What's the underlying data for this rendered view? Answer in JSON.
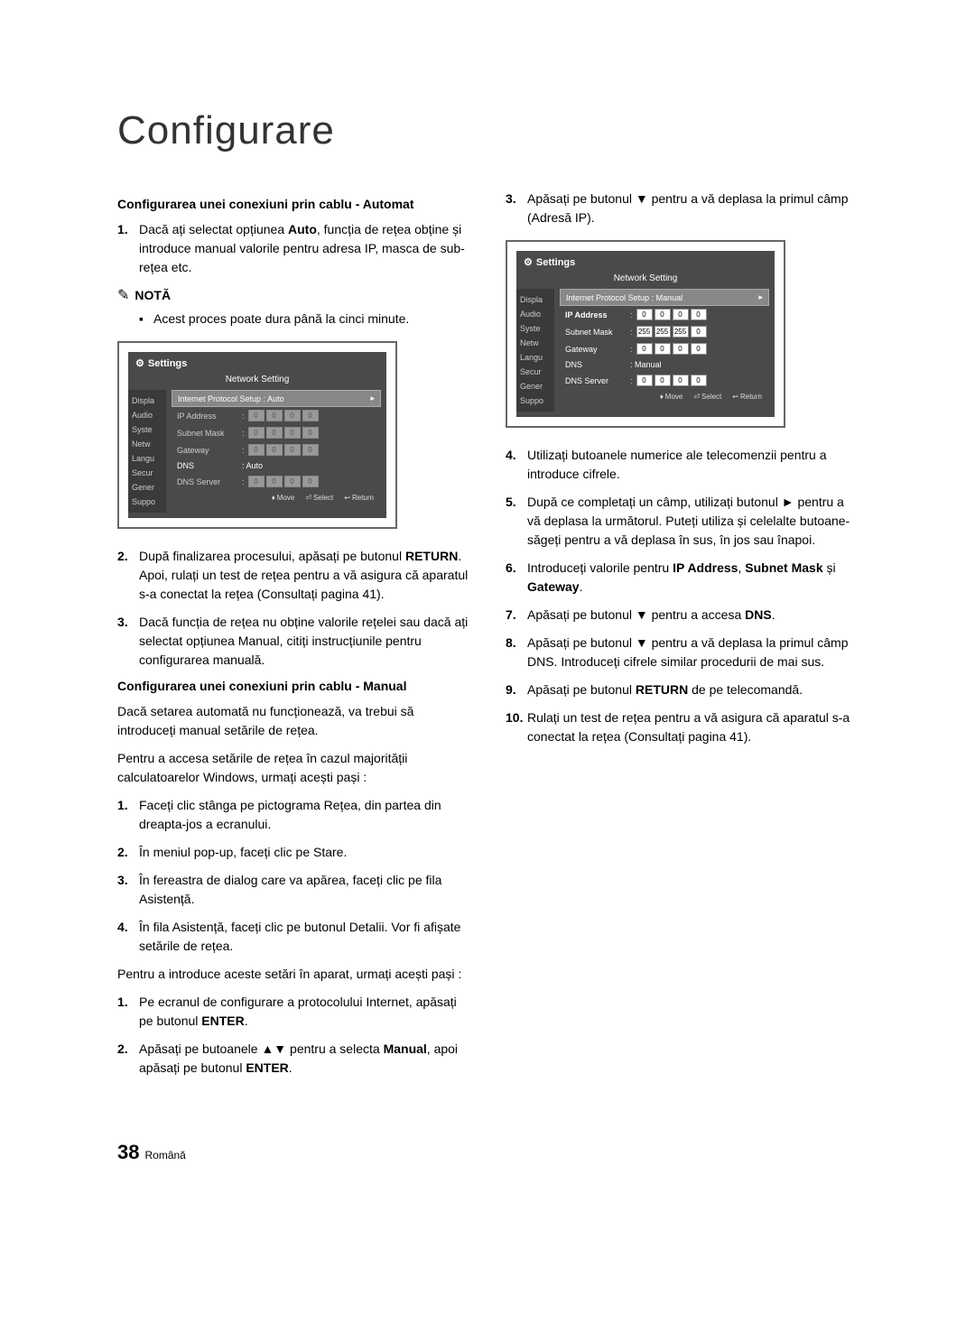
{
  "page_title": "Configurare",
  "left": {
    "h1": "Configurarea unei conexiuni prin cablu - Automat",
    "auto_steps": [
      "Dacă ați selectat opțiunea Auto, funcția de rețea obține și introduce manual valorile pentru adresa IP, masca de sub-rețea etc."
    ],
    "note_label": "NOTĂ",
    "note_bullet": "Acest proces poate dura până la cinci minute.",
    "step2": "După finalizarea procesului, apăsați pe butonul RETURN.",
    "step2_cont": "Apoi, rulați un test de rețea pentru a vă asigura că aparatul s-a conectat la rețea (Consultați pagina 41).",
    "step3": "Dacă funcția de rețea nu obține valorile rețelei sau dacă ați selectat opțiunea Manual, citiți instrucțiunile pentru configurarea manuală.",
    "h2": "Configurarea unei conexiuni prin cablu - Manual",
    "manual_intro1": "Dacă setarea automată nu funcționează, va trebui să introduceți manual setările de rețea.",
    "manual_intro2": "Pentru a accesa setările de rețea în cazul majorității calculatoarelor Windows, urmați acești pași :",
    "win_steps": [
      "Faceți clic stânga pe pictograma Rețea, din partea din dreapta-jos a ecranului.",
      "În meniul pop-up, faceți clic pe Stare.",
      "În fereastra de dialog care va apărea, faceți clic pe fila Asistență.",
      "În fila Asistență, faceți clic pe butonul Detalii. Vor fi afișate setările de rețea."
    ],
    "enter_intro": "Pentru a introduce aceste setări în aparat, urmați acești pași :",
    "enter_steps": [
      "Pe ecranul de configurare a protocolului Internet, apăsați pe butonul ENTER.",
      "Apăsați pe butoanele ▲▼ pentru a selecta Manual, apoi apăsați pe butonul ENTER."
    ]
  },
  "right": {
    "step3": "Apăsați pe butonul ▼ pentru a vă deplasa la primul câmp (Adresă IP).",
    "step4": "Utilizați butoanele numerice ale telecomenzii pentru a introduce cifrele.",
    "step5": "După ce completați un câmp, utilizați butonul ► pentru a vă deplasa la următorul. Puteți utiliza și celelalte butoane-săgeți pentru a vă deplasa în sus, în jos sau înapoi.",
    "step6": "Introduceți valorile pentru IP Address, Subnet Mask și Gateway.",
    "step7": "Apăsați pe butonul ▼ pentru a accesa DNS.",
    "step8": "Apăsați pe butonul ▼ pentru a vă deplasa la primul câmp DNS. Introduceți cifrele similar procedurii de mai sus.",
    "step9": "Apăsați pe butonul RETURN de pe telecomandă.",
    "step10": "Rulați un test de rețea pentru a vă asigura că aparatul s-a conectat la rețea (Consultați pagina 41)."
  },
  "dialog1": {
    "header": "Settings",
    "title": "Network Setting",
    "sidebar": [
      "Displa",
      "Audio",
      "Syste",
      "Netw",
      "Langu",
      "Secur",
      "Gener",
      "Suppo"
    ],
    "protocol_label": "Internet Protocol Setup",
    "protocol_value": "Auto",
    "ip_label": "IP Address",
    "ip": [
      "0",
      "0",
      "0",
      "0"
    ],
    "subnet_label": "Subnet Mask",
    "subnet": [
      "0",
      "0",
      "0",
      "0"
    ],
    "gateway_label": "Gateway",
    "gateway": [
      "0",
      "0",
      "0",
      "0"
    ],
    "dns_label": "DNS",
    "dns_value": "Auto",
    "dnsserver_label": "DNS Server",
    "dnsserver": [
      "0",
      "0",
      "0",
      "0"
    ],
    "footer": {
      "move": "Move",
      "select": "Select",
      "return": "Return"
    }
  },
  "dialog2": {
    "header": "Settings",
    "title": "Network Setting",
    "sidebar": [
      "Displa",
      "Audio",
      "Syste",
      "Netw",
      "Langu",
      "Secur",
      "Gener",
      "Suppo"
    ],
    "protocol_label": "Internet Protocol Setup",
    "protocol_value": "Manual",
    "ip_label": "IP Address",
    "ip": [
      "0",
      "0",
      "0",
      "0"
    ],
    "subnet_label": "Subnet Mask",
    "subnet": [
      "255",
      "255",
      "255",
      "0"
    ],
    "gateway_label": "Gateway",
    "gateway": [
      "0",
      "0",
      "0",
      "0"
    ],
    "dns_label": "DNS",
    "dns_value": "Manual",
    "dnsserver_label": "DNS Server",
    "dnsserver": [
      "0",
      "0",
      "0",
      "0"
    ],
    "footer": {
      "move": "Move",
      "select": "Select",
      "return": "Return"
    }
  },
  "footer": {
    "page": "38",
    "lang": "Română"
  }
}
